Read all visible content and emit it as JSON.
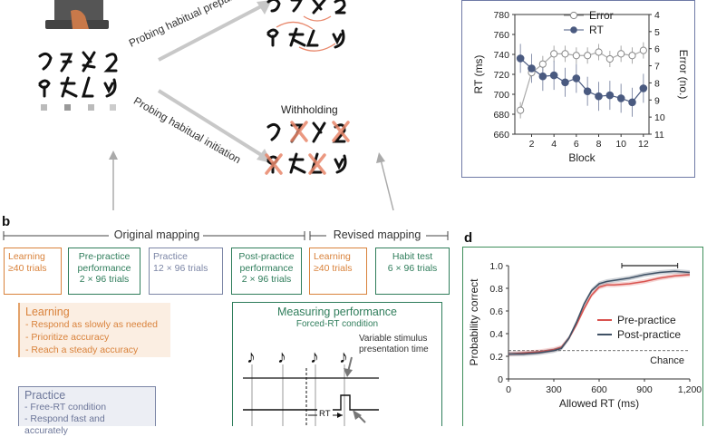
{
  "panel_a": {
    "arrow_upper": "Probing habitual preparation",
    "arrow_lower": "Probing habitual initiation",
    "withholding": "Withholding"
  },
  "panel_b": {
    "letter": "b",
    "original_mapping": "Original mapping",
    "revised_mapping": "Revised mapping",
    "boxes": [
      {
        "lines": [
          "Learning",
          "≥40 trials"
        ]
      },
      {
        "lines": [
          "Pre-practice",
          "performance",
          "2 × 96 trials"
        ]
      },
      {
        "lines": [
          "Practice",
          "12 × 96 trials"
        ]
      },
      {
        "lines": [
          "Post-practice",
          "performance",
          "2 × 96 trials"
        ]
      },
      {
        "lines": [
          "Learning",
          "≥40 trials"
        ]
      },
      {
        "lines": [
          "Habit test",
          "6 × 96 trials"
        ]
      }
    ],
    "learning_detail": {
      "title": "Learning",
      "items": [
        "- Respond as slowly as needed",
        "- Prioritize accuracy",
        "- Reach a steady accuracy"
      ]
    },
    "practice_detail": {
      "title": "Practice",
      "items": [
        "- Free-RT condition",
        "- Respond fast and accurately"
      ]
    },
    "measuring": {
      "title": "Measuring performance",
      "subtitle": "Forced-RT condition",
      "annotation": "Variable stimulus presentation time",
      "rt_label": "RT"
    }
  },
  "panel_c": {
    "chart_data": {
      "type": "line",
      "xlabel": "Block",
      "x": [
        1,
        2,
        3,
        4,
        5,
        6,
        7,
        8,
        9,
        10,
        11,
        12
      ],
      "xticks": [
        2,
        4,
        6,
        8,
        10,
        12
      ],
      "y_left": {
        "label": "RT (ms)",
        "lim": [
          660,
          780
        ],
        "ticks": [
          660,
          680,
          700,
          720,
          740,
          760,
          780
        ]
      },
      "y_right": {
        "label": "Error (no.)",
        "lim": [
          11,
          4
        ],
        "ticks": [
          4,
          5,
          6,
          7,
          8,
          9,
          10,
          11
        ]
      },
      "series": [
        {
          "name": "Error",
          "axis": "right",
          "values": [
            9.6,
            7.4,
            6.9,
            6.3,
            6.3,
            6.4,
            6.4,
            6.2,
            6.6,
            6.3,
            6.4,
            6.1
          ],
          "color": "#ffffff"
        },
        {
          "name": "RT",
          "axis": "left",
          "values": [
            736,
            726,
            718,
            719,
            712,
            716,
            703,
            698,
            699,
            696,
            692,
            706
          ],
          "color": "#4a5a80"
        }
      ]
    }
  },
  "panel_d": {
    "letter": "d",
    "chart_data": {
      "type": "line",
      "xlabel": "Allowed RT (ms)",
      "ylabel": "Probability correct",
      "xlim": [
        0,
        1200
      ],
      "ylim": [
        0,
        1.0
      ],
      "xticks": [
        "0",
        "300",
        "600",
        "900",
        "1,200"
      ],
      "yticks": [
        "0",
        "0.2",
        "0.4",
        "0.6",
        "0.8",
        "1.0"
      ],
      "chance_label": "Chance",
      "chance_value": 0.25,
      "x": [
        0,
        100,
        200,
        300,
        350,
        400,
        450,
        500,
        550,
        600,
        650,
        700,
        800,
        900,
        1000,
        1100,
        1200
      ],
      "series": [
        {
          "name": "Pre-practice",
          "color": "#d9534f",
          "values": [
            0.22,
            0.23,
            0.24,
            0.26,
            0.28,
            0.36,
            0.48,
            0.62,
            0.74,
            0.81,
            0.83,
            0.83,
            0.84,
            0.86,
            0.89,
            0.91,
            0.92
          ]
        },
        {
          "name": "Post-practice",
          "color": "#3f5165",
          "values": [
            0.22,
            0.22,
            0.23,
            0.25,
            0.27,
            0.36,
            0.5,
            0.66,
            0.78,
            0.84,
            0.86,
            0.87,
            0.89,
            0.92,
            0.94,
            0.95,
            0.94
          ]
        }
      ]
    }
  }
}
